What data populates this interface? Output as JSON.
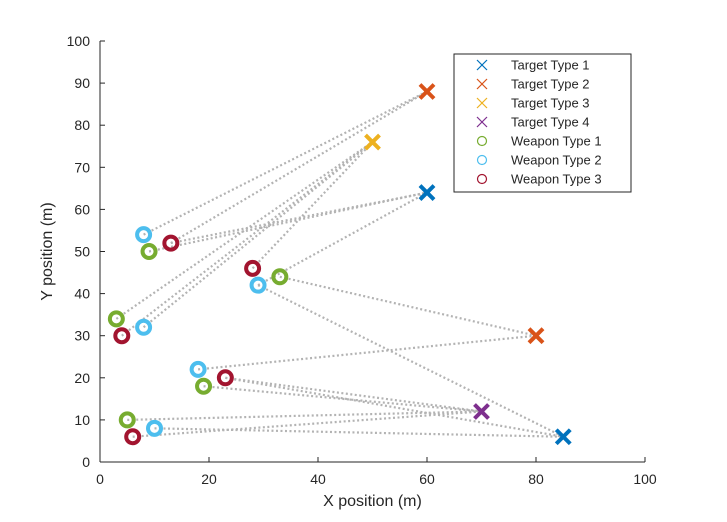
{
  "chart_data": {
    "type": "scatter",
    "xlabel": "X position (m)",
    "ylabel": "Y position (m)",
    "xlim": [
      0,
      100
    ],
    "ylim": [
      0,
      100
    ],
    "xticks": [
      0,
      20,
      40,
      60,
      80,
      100
    ],
    "yticks": [
      0,
      10,
      20,
      30,
      40,
      50,
      60,
      70,
      80,
      90,
      100
    ],
    "grid": false,
    "legend_position": "top-right",
    "series": [
      {
        "name": "Target Type 1",
        "marker": "x",
        "color": "#0072BD",
        "points": [
          [
            60,
            64
          ],
          [
            85,
            6
          ]
        ]
      },
      {
        "name": "Target Type 2",
        "marker": "x",
        "color": "#D95319",
        "points": [
          [
            60,
            88
          ],
          [
            80,
            30
          ]
        ]
      },
      {
        "name": "Target Type 3",
        "marker": "x",
        "color": "#EDB120",
        "points": [
          [
            50,
            76
          ]
        ]
      },
      {
        "name": "Target Type 4",
        "marker": "x",
        "color": "#7E2F8E",
        "points": [
          [
            70,
            12
          ]
        ]
      },
      {
        "name": "Weapon Type 1",
        "marker": "o",
        "color": "#77AC30",
        "points": [
          [
            9,
            50
          ],
          [
            33,
            44
          ],
          [
            3,
            34
          ],
          [
            19,
            18
          ],
          [
            5,
            10
          ]
        ]
      },
      {
        "name": "Weapon Type 2",
        "marker": "o",
        "color": "#4DBEEE",
        "points": [
          [
            8,
            54
          ],
          [
            29,
            42
          ],
          [
            8,
            32
          ],
          [
            18,
            22
          ],
          [
            10,
            8
          ]
        ]
      },
      {
        "name": "Weapon Type 3",
        "marker": "o",
        "color": "#A2142F",
        "points": [
          [
            13,
            52
          ],
          [
            28,
            46
          ],
          [
            4,
            30
          ],
          [
            23,
            20
          ],
          [
            6,
            6
          ]
        ]
      }
    ],
    "assignments": [
      {
        "from": [
          8,
          54
        ],
        "to": [
          60,
          88
        ]
      },
      {
        "from": [
          13,
          52
        ],
        "to": [
          60,
          88
        ]
      },
      {
        "from": [
          9,
          50
        ],
        "to": [
          60,
          64
        ]
      },
      {
        "from": [
          13,
          52
        ],
        "to": [
          60,
          64
        ]
      },
      {
        "from": [
          29,
          42
        ],
        "to": [
          60,
          64
        ]
      },
      {
        "from": [
          28,
          46
        ],
        "to": [
          50,
          76
        ]
      },
      {
        "from": [
          3,
          34
        ],
        "to": [
          50,
          76
        ]
      },
      {
        "from": [
          8,
          32
        ],
        "to": [
          50,
          76
        ]
      },
      {
        "from": [
          4,
          30
        ],
        "to": [
          50,
          76
        ]
      },
      {
        "from": [
          33,
          44
        ],
        "to": [
          80,
          30
        ]
      },
      {
        "from": [
          18,
          22
        ],
        "to": [
          80,
          30
        ]
      },
      {
        "from": [
          29,
          42
        ],
        "to": [
          85,
          6
        ]
      },
      {
        "from": [
          23,
          20
        ],
        "to": [
          70,
          12
        ]
      },
      {
        "from": [
          19,
          18
        ],
        "to": [
          70,
          12
        ]
      },
      {
        "from": [
          5,
          10
        ],
        "to": [
          70,
          12
        ]
      },
      {
        "from": [
          6,
          6
        ],
        "to": [
          70,
          12
        ]
      },
      {
        "from": [
          23,
          20
        ],
        "to": [
          85,
          6
        ]
      },
      {
        "from": [
          10,
          8
        ],
        "to": [
          85,
          6
        ]
      }
    ]
  }
}
